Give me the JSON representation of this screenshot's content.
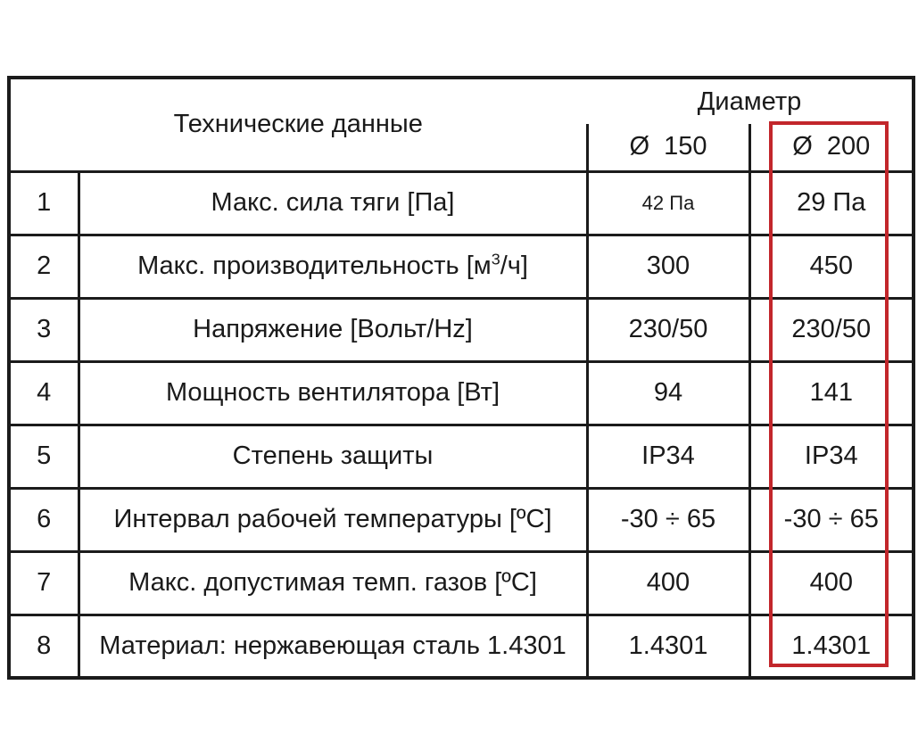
{
  "colors": {
    "background": "#ffffff",
    "table_border": "#1b1b1b",
    "text": "#1a1a1a",
    "highlight_border": "#c2262b"
  },
  "table": {
    "header": {
      "tech_data": "Технические данные",
      "diameter": "Диаметр",
      "d150": "Ø  150",
      "d200": "Ø  200"
    },
    "rows": [
      {
        "num": "1",
        "label": "Макс. сила тяги [Па]",
        "v150": "42 Па",
        "v200": "29 Па"
      },
      {
        "num": "2",
        "label_pre": "Макс. производительность [м",
        "label_sup": "3",
        "label_post": "/ч]",
        "v150": "300",
        "v200": "450"
      },
      {
        "num": "3",
        "label": "Напряжение [Вольт/Hz]",
        "v150": "230/50",
        "v200": "230/50"
      },
      {
        "num": "4",
        "label": "Мощность вентилятора [Вт]",
        "v150": "94",
        "v200": "141"
      },
      {
        "num": "5",
        "label": "Степень защиты",
        "v150": "IP34",
        "v200": "IP34"
      },
      {
        "num": "6",
        "label": "Интервал рабочей температуры [ºC]",
        "v150": "-30 ÷ 65",
        "v200": "-30 ÷ 65"
      },
      {
        "num": "7",
        "label": "Макс. допустимая темп. газов [ºC]",
        "v150": "400",
        "v200": "400"
      },
      {
        "num": "8",
        "label": "Материал: нержавеющая сталь 1.4301",
        "v150": "1.4301",
        "v200": "1.4301"
      }
    ]
  }
}
